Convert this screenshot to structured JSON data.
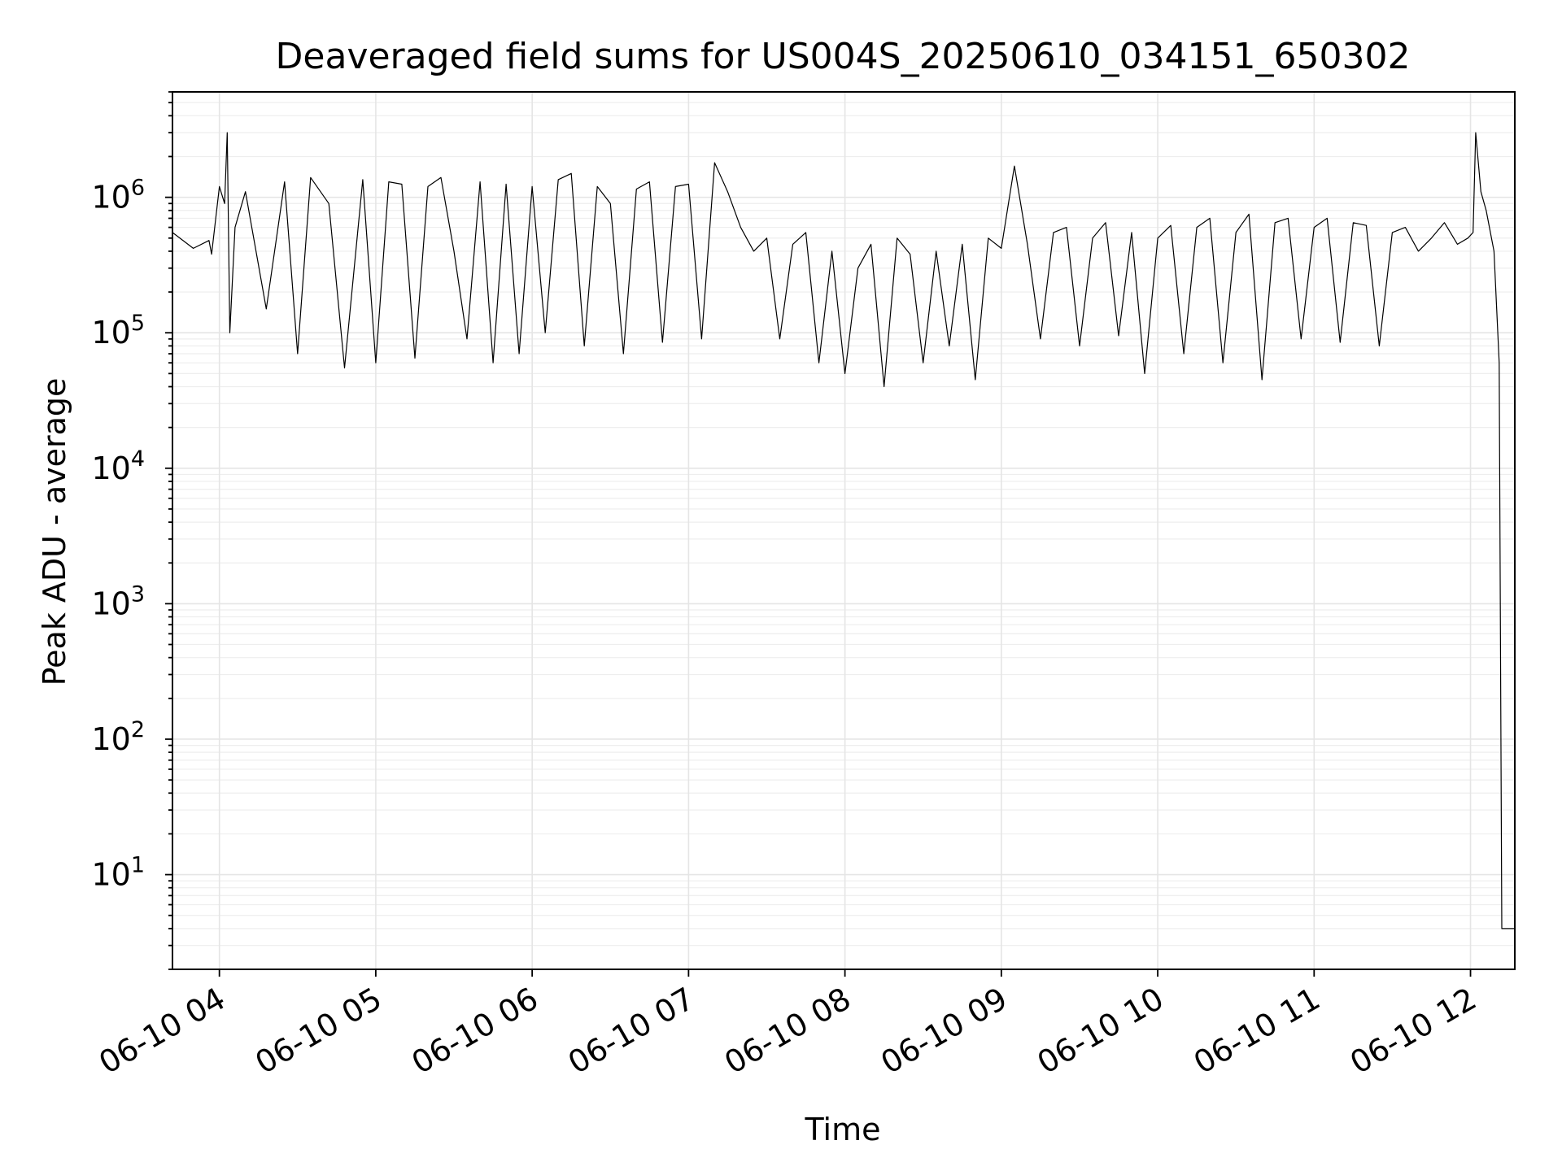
{
  "chart_data": {
    "type": "line",
    "title": "Deaveraged field sums for US004S_20250610_034151_650302",
    "xlabel": "Time",
    "ylabel": "Peak ADU - average",
    "yscale": "log",
    "ylim": [
      2,
      6000000
    ],
    "xlim": [
      "2025-06-10 03:42",
      "2025-06-10 12:17"
    ],
    "x_tick_labels": [
      "06-10 04",
      "06-10 05",
      "06-10 06",
      "06-10 07",
      "06-10 08",
      "06-10 09",
      "06-10 10",
      "06-10 11",
      "06-10 12"
    ],
    "x_tick_times": [
      "2025-06-10 04:00",
      "2025-06-10 05:00",
      "2025-06-10 06:00",
      "2025-06-10 07:00",
      "2025-06-10 08:00",
      "2025-06-10 09:00",
      "2025-06-10 10:00",
      "2025-06-10 11:00",
      "2025-06-10 12:00"
    ],
    "y_ticks": [
      {
        "base": "10",
        "exp": "1",
        "value": 10
      },
      {
        "base": "10",
        "exp": "2",
        "value": 100
      },
      {
        "base": "10",
        "exp": "3",
        "value": 1000
      },
      {
        "base": "10",
        "exp": "4",
        "value": 10000
      },
      {
        "base": "10",
        "exp": "5",
        "value": 100000
      },
      {
        "base": "10",
        "exp": "6",
        "value": 1000000
      }
    ],
    "grid": "major and minor",
    "line_color": "#000000",
    "series": [
      {
        "x": [
          "03:42",
          "03:50",
          "03:56",
          "03:57",
          "04:00",
          "04:02",
          "04:03",
          "04:04",
          "04:06",
          "04:10",
          "04:18",
          "04:25",
          "04:30",
          "04:35",
          "04:42",
          "04:48",
          "04:55",
          "05:00",
          "05:05",
          "05:10",
          "05:15",
          "05:20",
          "05:25",
          "05:30",
          "05:35",
          "05:40",
          "05:45",
          "05:50",
          "05:55",
          "06:00",
          "06:05",
          "06:10",
          "06:15",
          "06:20",
          "06:25",
          "06:30",
          "06:35",
          "06:40",
          "06:45",
          "06:50",
          "06:55",
          "07:00",
          "07:05",
          "07:10",
          "07:15",
          "07:20",
          "07:25",
          "07:30",
          "07:35",
          "07:40",
          "07:45",
          "07:50",
          "07:55",
          "08:00",
          "08:05",
          "08:10",
          "08:15",
          "08:20",
          "08:25",
          "08:30",
          "08:35",
          "08:40",
          "08:45",
          "08:50",
          "08:55",
          "09:00",
          "09:05",
          "09:10",
          "09:15",
          "09:20",
          "09:25",
          "09:30",
          "09:35",
          "09:40",
          "09:45",
          "09:50",
          "09:55",
          "10:00",
          "10:05",
          "10:10",
          "10:15",
          "10:20",
          "10:25",
          "10:30",
          "10:35",
          "10:40",
          "10:45",
          "10:50",
          "10:55",
          "11:00",
          "11:05",
          "11:10",
          "11:15",
          "11:20",
          "11:25",
          "11:30",
          "11:35",
          "11:40",
          "11:45",
          "11:50",
          "11:55",
          "11:59",
          "12:01",
          "12:02",
          "12:04",
          "12:06",
          "12:09",
          "12:11",
          "12:12",
          "12:13",
          "12:17"
        ],
        "y": [
          550000,
          420000,
          480000,
          380000,
          1200000,
          900000,
          3000000,
          100000,
          600000,
          1100000,
          150000,
          1300000,
          70000,
          1400000,
          900000,
          55000,
          1350000,
          60000,
          1300000,
          1250000,
          65000,
          1200000,
          1400000,
          400000,
          90000,
          1300000,
          60000,
          1250000,
          70000,
          1200000,
          100000,
          1350000,
          1500000,
          80000,
          1200000,
          900000,
          70000,
          1150000,
          1300000,
          85000,
          1200000,
          1250000,
          90000,
          1800000,
          1100000,
          600000,
          400000,
          500000,
          90000,
          450000,
          550000,
          60000,
          400000,
          50000,
          300000,
          450000,
          40000,
          500000,
          380000,
          60000,
          400000,
          80000,
          450000,
          45000,
          500000,
          420000,
          1700000,
          450000,
          90000,
          550000,
          600000,
          80000,
          500000,
          650000,
          95000,
          550000,
          50000,
          500000,
          620000,
          70000,
          600000,
          700000,
          60000,
          550000,
          750000,
          45000,
          650000,
          700000,
          90000,
          600000,
          700000,
          85000,
          650000,
          620000,
          80000,
          550000,
          600000,
          400000,
          500000,
          650000,
          450000,
          500000,
          550000,
          3000000,
          1100000,
          800000,
          400000,
          60000,
          4,
          4,
          4
        ]
      }
    ]
  }
}
